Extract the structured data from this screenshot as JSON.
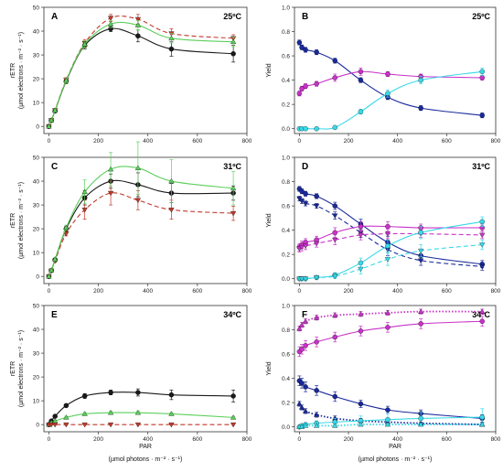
{
  "colors": {
    "black": "#1a1a1a",
    "red": "#c0392b",
    "green": "#5ccf5c",
    "navy": "#1a2a9c",
    "magenta": "#c832c8",
    "cyan": "#38d8e8",
    "axis": "#333333"
  },
  "shared": {
    "x_tick_labels": [
      "0",
      "200",
      "400",
      "600",
      "800"
    ],
    "xlabel_line1": "PAR",
    "xlabel_line2": "(µmol photons · m⁻² · s⁻¹)"
  },
  "chart_data": [
    {
      "panel": "A",
      "temperature": "25ºC",
      "type": "line",
      "ylabel_line1": "rETR",
      "ylabel_line2": "(µmol electrons · m⁻² · s⁻¹)",
      "xlim": [
        -20,
        800
      ],
      "ylim": [
        -3,
        50
      ],
      "y_ticks": [
        0,
        10,
        20,
        30,
        40,
        50
      ],
      "y_tick_labels": [
        "0",
        "10",
        "20",
        "30",
        "40",
        "50"
      ],
      "x": [
        0,
        10,
        25,
        70,
        145,
        250,
        360,
        495,
        745
      ],
      "series": [
        {
          "color_key": "black",
          "marker": "circle",
          "dash": "solid",
          "values": [
            0,
            2.5,
            6.5,
            19,
            34,
            41,
            38,
            32.5,
            30.5
          ],
          "errors": [
            0.3,
            0.5,
            0.6,
            1,
            1.5,
            1.2,
            2.5,
            3,
            3.5
          ]
        },
        {
          "color_key": "red",
          "marker": "triangle-down",
          "dash": "dashed",
          "values": [
            0,
            2.6,
            6.8,
            19.5,
            35,
            45.5,
            45,
            39,
            37
          ],
          "errors": [
            0.3,
            0.5,
            0.6,
            1,
            1.5,
            1.5,
            2,
            2,
            1.5
          ]
        },
        {
          "color_key": "green",
          "marker": "triangle-up",
          "dash": "solid",
          "values": [
            0,
            2.6,
            6.7,
            19.3,
            34.5,
            43,
            42.5,
            37,
            35.5
          ],
          "errors": [
            0.3,
            0.5,
            0.6,
            1,
            1.5,
            1.5,
            2,
            2,
            2
          ]
        }
      ]
    },
    {
      "panel": "B",
      "temperature": "25ºC",
      "type": "line",
      "ylabel_line1": "Yield",
      "xlim": [
        -20,
        800
      ],
      "ylim": [
        -0.04,
        1.0
      ],
      "y_ticks": [
        0,
        0.2,
        0.4,
        0.6,
        0.8,
        1.0
      ],
      "y_tick_labels": [
        "0.0",
        "0.2",
        "0.4",
        "0.6",
        "0.8",
        "1.0"
      ],
      "x": [
        0,
        10,
        25,
        70,
        145,
        250,
        360,
        495,
        745
      ],
      "series": [
        {
          "color_key": "navy",
          "marker": "circle",
          "dash": "solid",
          "values": [
            0.71,
            0.67,
            0.65,
            0.63,
            0.56,
            0.4,
            0.26,
            0.17,
            0.11
          ],
          "errors": [
            0.02,
            0.02,
            0.02,
            0.02,
            0.02,
            0.02,
            0.02,
            0.02,
            0.02
          ]
        },
        {
          "color_key": "magenta",
          "marker": "circle",
          "dash": "solid",
          "values": [
            0.29,
            0.33,
            0.35,
            0.37,
            0.42,
            0.47,
            0.45,
            0.43,
            0.42
          ],
          "errors": [
            0.02,
            0.02,
            0.02,
            0.02,
            0.03,
            0.03,
            0.02,
            0.02,
            0.02
          ]
        },
        {
          "color_key": "cyan",
          "marker": "circle",
          "dash": "solid",
          "values": [
            0,
            0,
            0,
            0,
            0.01,
            0.14,
            0.29,
            0.4,
            0.47
          ],
          "errors": [
            0.01,
            0.01,
            0.01,
            0.01,
            0.01,
            0.02,
            0.03,
            0.03,
            0.03
          ]
        }
      ]
    },
    {
      "panel": "C",
      "temperature": "31ºC",
      "type": "line",
      "ylabel_line1": "rETR",
      "ylabel_line2": "(µmol electrons · m⁻² · s⁻¹)",
      "xlim": [
        -20,
        800
      ],
      "ylim": [
        -3,
        50
      ],
      "y_ticks": [
        0,
        10,
        20,
        30,
        40,
        50
      ],
      "y_tick_labels": [
        "0",
        "10",
        "20",
        "30",
        "40",
        "50"
      ],
      "x": [
        0,
        10,
        25,
        70,
        145,
        250,
        360,
        495,
        745
      ],
      "series": [
        {
          "color_key": "black",
          "marker": "circle",
          "dash": "solid",
          "values": [
            0,
            2.5,
            7,
            20,
            33,
            40,
            38.5,
            35,
            35
          ],
          "errors": [
            0.3,
            0.5,
            0.6,
            1,
            3,
            3,
            5,
            4,
            3
          ]
        },
        {
          "color_key": "red",
          "marker": "triangle-down",
          "dash": "dashed",
          "values": [
            0,
            2.4,
            6.5,
            18,
            28,
            35,
            32,
            28,
            26.5
          ],
          "errors": [
            0.3,
            0.5,
            0.6,
            1,
            4,
            5,
            4,
            4,
            3
          ]
        },
        {
          "color_key": "green",
          "marker": "triangle-up",
          "dash": "solid",
          "values": [
            0,
            2.6,
            7.2,
            20.5,
            35.5,
            45,
            45.5,
            40,
            37
          ],
          "errors": [
            0.3,
            0.5,
            0.6,
            1,
            5,
            7,
            11,
            9,
            7
          ]
        }
      ]
    },
    {
      "panel": "D",
      "temperature": "31ºC",
      "type": "line",
      "ylabel_line1": "Yield",
      "xlim": [
        -20,
        800
      ],
      "ylim": [
        -0.04,
        1.0
      ],
      "y_ticks": [
        0,
        0.2,
        0.4,
        0.6,
        0.8,
        1.0
      ],
      "y_tick_labels": [
        "0.0",
        "0.2",
        "0.4",
        "0.6",
        "0.8",
        "1.0"
      ],
      "x": [
        0,
        10,
        25,
        70,
        145,
        250,
        360,
        495,
        745
      ],
      "series": [
        {
          "color_key": "navy",
          "marker": "circle",
          "dash": "solid",
          "values": [
            0.74,
            0.72,
            0.7,
            0.68,
            0.6,
            0.45,
            0.3,
            0.19,
            0.12
          ],
          "errors": [
            0.02,
            0.02,
            0.02,
            0.02,
            0.03,
            0.04,
            0.05,
            0.04,
            0.03
          ]
        },
        {
          "color_key": "navy",
          "marker": "triangle-down",
          "dash": "dashed",
          "values": [
            0.66,
            0.64,
            0.62,
            0.6,
            0.52,
            0.38,
            0.24,
            0.15,
            0.1
          ],
          "errors": [
            0.02,
            0.02,
            0.02,
            0.02,
            0.03,
            0.04,
            0.05,
            0.04,
            0.03
          ]
        },
        {
          "color_key": "magenta",
          "marker": "circle",
          "dash": "solid",
          "values": [
            0.26,
            0.28,
            0.3,
            0.32,
            0.38,
            0.43,
            0.43,
            0.42,
            0.42
          ],
          "errors": [
            0.03,
            0.03,
            0.03,
            0.03,
            0.04,
            0.04,
            0.04,
            0.03,
            0.03
          ]
        },
        {
          "color_key": "magenta",
          "marker": "triangle-down",
          "dash": "dashed",
          "values": [
            0.25,
            0.26,
            0.27,
            0.29,
            0.32,
            0.36,
            0.37,
            0.37,
            0.36
          ],
          "errors": [
            0.03,
            0.03,
            0.03,
            0.03,
            0.04,
            0.04,
            0.04,
            0.03,
            0.03
          ]
        },
        {
          "color_key": "cyan",
          "marker": "circle",
          "dash": "solid",
          "values": [
            0,
            0,
            0,
            0.01,
            0.03,
            0.13,
            0.27,
            0.38,
            0.47
          ],
          "errors": [
            0.01,
            0.01,
            0.01,
            0.01,
            0.02,
            0.04,
            0.05,
            0.05,
            0.04
          ]
        },
        {
          "color_key": "cyan",
          "marker": "triangle-down",
          "dash": "dashed",
          "values": [
            0,
            0,
            0,
            0.01,
            0.02,
            0.08,
            0.16,
            0.23,
            0.28
          ],
          "errors": [
            0.01,
            0.01,
            0.01,
            0.01,
            0.02,
            0.04,
            0.05,
            0.05,
            0.04
          ]
        }
      ]
    },
    {
      "panel": "E",
      "temperature": "34ºC",
      "type": "line",
      "ylabel_line1": "rETR",
      "ylabel_line2": "(µmol electrons · m⁻² · s⁻¹)",
      "xlim": [
        -20,
        800
      ],
      "ylim": [
        -3,
        50
      ],
      "y_ticks": [
        0,
        10,
        20,
        30,
        40,
        50
      ],
      "y_tick_labels": [
        "0",
        "10",
        "20",
        "30",
        "40",
        "50"
      ],
      "x": [
        0,
        10,
        25,
        70,
        145,
        250,
        360,
        495,
        745
      ],
      "series": [
        {
          "color_key": "black",
          "marker": "circle",
          "dash": "solid",
          "values": [
            0,
            1.5,
            3.5,
            8,
            12,
            13.5,
            13.5,
            12.5,
            12
          ],
          "errors": [
            0.2,
            0.3,
            0.4,
            0.6,
            1,
            1,
            1.5,
            2,
            2.5
          ]
        },
        {
          "color_key": "green",
          "marker": "triangle-up",
          "dash": "solid",
          "values": [
            0,
            0.8,
            1.5,
            3,
            4.5,
            5,
            5,
            4.5,
            3
          ],
          "errors": [
            0.2,
            0.3,
            0.4,
            0.5,
            0.6,
            0.6,
            0.6,
            0.6,
            0.5
          ]
        },
        {
          "color_key": "red",
          "marker": "triangle-down",
          "dash": "dashed",
          "values": [
            0,
            0,
            0,
            0,
            0,
            0,
            0,
            0,
            0
          ],
          "errors": [
            0,
            0,
            0,
            0,
            0,
            0,
            0,
            0,
            0
          ]
        }
      ]
    },
    {
      "panel": "F",
      "temperature": "34ºC",
      "type": "line",
      "ylabel_line1": "Yield",
      "xlim": [
        -20,
        800
      ],
      "ylim": [
        -0.04,
        1.0
      ],
      "y_ticks": [
        0,
        0.2,
        0.4,
        0.6,
        0.8,
        1.0
      ],
      "y_tick_labels": [
        "0.0",
        "0.2",
        "0.4",
        "0.6",
        "0.8",
        "1.0"
      ],
      "x": [
        0,
        10,
        25,
        70,
        145,
        250,
        360,
        495,
        745
      ],
      "series": [
        {
          "color_key": "magenta",
          "marker": "triangle-up",
          "dash": "dotted",
          "values": [
            0.81,
            0.84,
            0.87,
            0.9,
            0.92,
            0.93,
            0.94,
            0.95,
            0.95
          ],
          "errors": [
            0.02,
            0.02,
            0.02,
            0.02,
            0.02,
            0.02,
            0.02,
            0.02,
            0.02
          ]
        },
        {
          "color_key": "magenta",
          "marker": "circle",
          "dash": "solid",
          "values": [
            0.62,
            0.64,
            0.67,
            0.7,
            0.74,
            0.79,
            0.82,
            0.85,
            0.87
          ],
          "errors": [
            0.04,
            0.04,
            0.04,
            0.04,
            0.04,
            0.04,
            0.04,
            0.04,
            0.04
          ]
        },
        {
          "color_key": "navy",
          "marker": "circle",
          "dash": "solid",
          "values": [
            0.38,
            0.36,
            0.33,
            0.3,
            0.25,
            0.19,
            0.14,
            0.11,
            0.07
          ],
          "errors": [
            0.04,
            0.04,
            0.04,
            0.04,
            0.04,
            0.03,
            0.03,
            0.03,
            0.03
          ]
        },
        {
          "color_key": "navy",
          "marker": "triangle-up",
          "dash": "dotted",
          "values": [
            0.19,
            0.16,
            0.13,
            0.1,
            0.07,
            0.05,
            0.04,
            0.03,
            0.02
          ],
          "errors": [
            0.02,
            0.02,
            0.02,
            0.02,
            0.02,
            0.02,
            0.01,
            0.01,
            0.01
          ]
        },
        {
          "color_key": "cyan",
          "marker": "circle",
          "dash": "solid",
          "values": [
            0,
            0.01,
            0.02,
            0.03,
            0.04,
            0.05,
            0.06,
            0.07,
            0.08
          ],
          "errors": [
            0.01,
            0.01,
            0.01,
            0.02,
            0.03,
            0.04,
            0.05,
            0.05,
            0.07
          ]
        },
        {
          "color_key": "cyan",
          "marker": "triangle-up",
          "dash": "dotted",
          "values": [
            0,
            0,
            0.01,
            0.01,
            0.01,
            0.02,
            0.02,
            0.02,
            0.02
          ],
          "errors": [
            0.01,
            0.01,
            0.01,
            0.01,
            0.01,
            0.01,
            0.01,
            0.01,
            0.01
          ]
        }
      ]
    }
  ]
}
